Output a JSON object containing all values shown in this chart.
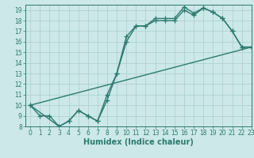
{
  "xlabel": "Humidex (Indice chaleur)",
  "bg_color": "#cce8e8",
  "line_color": "#2d7a6e",
  "grid_color": "#aacece",
  "xlim": [
    -0.5,
    23
  ],
  "ylim": [
    8,
    19.5
  ],
  "xticks": [
    0,
    1,
    2,
    3,
    4,
    5,
    6,
    7,
    8,
    9,
    10,
    11,
    12,
    13,
    14,
    15,
    16,
    17,
    18,
    19,
    20,
    21,
    22,
    23
  ],
  "yticks": [
    8,
    9,
    10,
    11,
    12,
    13,
    14,
    15,
    16,
    17,
    18,
    19
  ],
  "line1_x": [
    0,
    1,
    2,
    3,
    4,
    5,
    6,
    7,
    8,
    9,
    10,
    11,
    12,
    13,
    14,
    15,
    16,
    17,
    18,
    19,
    20,
    21,
    22,
    23
  ],
  "line1_y": [
    10,
    9,
    9,
    8,
    8.5,
    9.5,
    9,
    8.5,
    10.5,
    13,
    16,
    17.5,
    17.5,
    18.2,
    18.2,
    18.2,
    19.3,
    18.7,
    19.2,
    18.8,
    18.2,
    17,
    15.5,
    15.5
  ],
  "line2_x": [
    0,
    3,
    4,
    5,
    6,
    7,
    8,
    9,
    10,
    11,
    12,
    13,
    14,
    15,
    16,
    17,
    18,
    19,
    20,
    21,
    22,
    23
  ],
  "line2_y": [
    10,
    8,
    8.5,
    9.5,
    9,
    8.5,
    11,
    13,
    16.5,
    17.5,
    17.5,
    18,
    18,
    18,
    19,
    18.5,
    19.2,
    18.8,
    18.2,
    17,
    15.5,
    15.5
  ],
  "line3_x": [
    0,
    23
  ],
  "line3_y": [
    10,
    15.5
  ],
  "marker": "+",
  "markersize": 4,
  "linewidth": 1.0,
  "xlabel_fontsize": 7,
  "tick_fontsize": 5.5
}
